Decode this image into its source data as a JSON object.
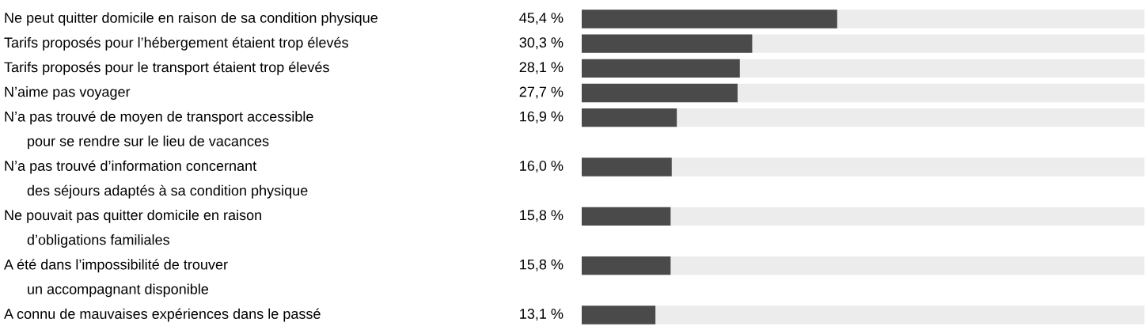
{
  "chart_data": {
    "type": "bar",
    "orientation": "horizontal",
    "categories": [
      "Ne peut quitter domicile en raison de sa condition physique",
      "Tarifs proposés pour l’hébergement étaient trop élevés",
      "Tarifs proposés pour le transport étaient trop élevés",
      "N’aime pas voyager",
      "N’a pas trouvé de moyen de transport accessible\npour se rendre sur le lieu de vacances",
      "N’a pas trouvé d’information concernant\ndes séjours adaptés à sa condition physique",
      "Ne pouvait pas quitter domicile en raison\nd’obligations familiales",
      "A été dans l’impossibilité de trouver\nun accompagnant disponible",
      "A connu de mauvaises expériences dans le passé"
    ],
    "values": [
      45.4,
      30.3,
      28.1,
      27.7,
      16.9,
      16.0,
      15.8,
      15.8,
      13.1
    ],
    "value_labels": [
      "45,4 %",
      "30,3 %",
      "28,1 %",
      "27,7 %",
      "16,9 %",
      "16,0 %",
      "15,8 %",
      "15,8 %",
      "13,1 %"
    ],
    "color": "#4a4a4a",
    "xlim": [
      0,
      100
    ],
    "bands": [
      {
        "axis": "x",
        "from": 0,
        "to": 100,
        "color": "#ececec"
      }
    ],
    "tick_labels": false
  }
}
